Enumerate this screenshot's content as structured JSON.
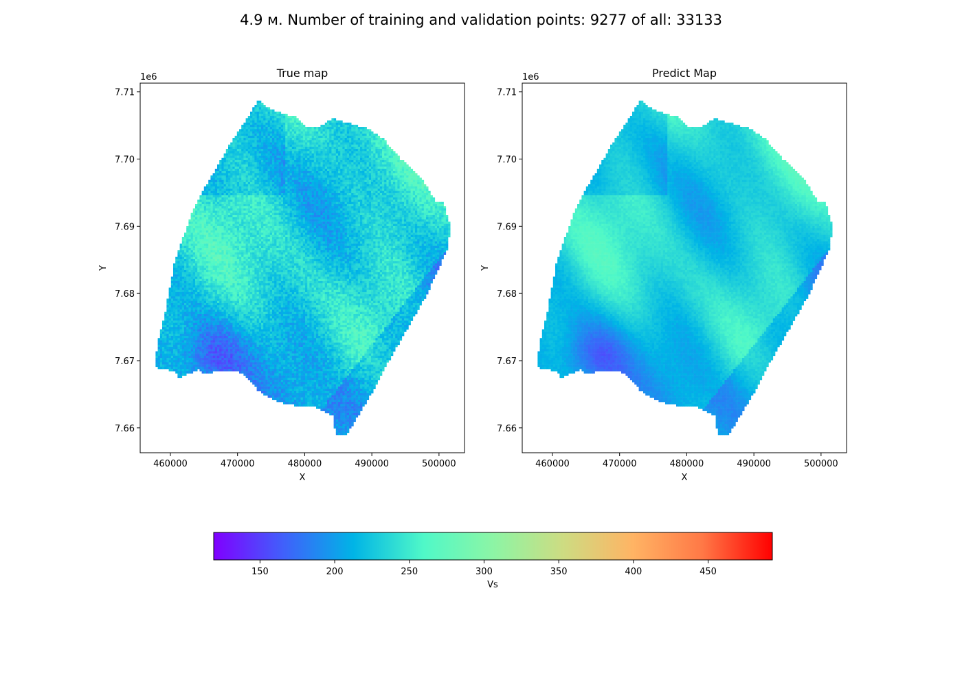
{
  "figure": {
    "suptitle": "4.9 м. Number of training and validation points: 9277 of all: 33133"
  },
  "chart_data": [
    {
      "type": "scatter",
      "title": "True map",
      "xlabel": "X",
      "ylabel": "Y",
      "y_offset_label": "1e6",
      "xlim": [
        455500,
        503800
      ],
      "ylim": [
        7656300,
        7711300
      ],
      "x_ticks": [
        460000,
        470000,
        480000,
        490000,
        500000
      ],
      "x_tick_labels": [
        "460000",
        "470000",
        "480000",
        "490000",
        "500000"
      ],
      "y_ticks": [
        7660000,
        7670000,
        7680000,
        7690000,
        7700000,
        7710000
      ],
      "y_tick_labels": [
        "7.66",
        "7.67",
        "7.68",
        "7.69",
        "7.70",
        "7.71"
      ],
      "footprint_polygon": [
        [
          457500,
          7669200
        ],
        [
          460500,
          7668600
        ],
        [
          461000,
          7667600
        ],
        [
          464000,
          7668800
        ],
        [
          465000,
          7668200
        ],
        [
          467000,
          7668600
        ],
        [
          470000,
          7668600
        ],
        [
          472000,
          7667000
        ],
        [
          473000,
          7665600
        ],
        [
          476000,
          7664000
        ],
        [
          478500,
          7663500
        ],
        [
          481000,
          7663500
        ],
        [
          484000,
          7662000
        ],
        [
          484500,
          7659000
        ],
        [
          486000,
          7659000
        ],
        [
          490000,
          7665600
        ],
        [
          492000,
          7669500
        ],
        [
          494000,
          7673000
        ],
        [
          496000,
          7676500
        ],
        [
          498000,
          7680000
        ],
        [
          500000,
          7684300
        ],
        [
          501300,
          7687300
        ],
        [
          501400,
          7690500
        ],
        [
          500500,
          7693900
        ],
        [
          499500,
          7693600
        ],
        [
          498500,
          7695200
        ],
        [
          497500,
          7697000
        ],
        [
          496000,
          7698500
        ],
        [
          494000,
          7700300
        ],
        [
          491500,
          7703200
        ],
        [
          489500,
          7704600
        ],
        [
          486000,
          7705600
        ],
        [
          484000,
          7706200
        ],
        [
          482000,
          7705000
        ],
        [
          480000,
          7705000
        ],
        [
          478500,
          7706400
        ],
        [
          477000,
          7706800
        ],
        [
          475000,
          7707500
        ],
        [
          474000,
          7708000
        ],
        [
          473000,
          7709000
        ],
        [
          470500,
          7705000
        ],
        [
          468500,
          7702000
        ],
        [
          466500,
          7698500
        ],
        [
          465000,
          7696000
        ],
        [
          463000,
          7692000
        ],
        [
          460500,
          7685000
        ],
        [
          459000,
          7677000
        ],
        [
          458000,
          7673000
        ]
      ],
      "point_count_shown": 33133,
      "value_range_observed": [
        150,
        320
      ],
      "colormap": "rainbow"
    },
    {
      "type": "scatter",
      "title": "Predict Map",
      "xlabel": "X",
      "ylabel": "Y",
      "y_offset_label": "1e6",
      "xlim": [
        455500,
        503800
      ],
      "ylim": [
        7656300,
        7711300
      ],
      "x_ticks": [
        460000,
        470000,
        480000,
        490000,
        500000
      ],
      "x_tick_labels": [
        "460000",
        "470000",
        "480000",
        "490000",
        "500000"
      ],
      "y_ticks": [
        7660000,
        7670000,
        7680000,
        7690000,
        7700000,
        7710000
      ],
      "y_tick_labels": [
        "7.66",
        "7.67",
        "7.68",
        "7.69",
        "7.70",
        "7.71"
      ],
      "footprint_polygon": [
        [
          457500,
          7669200
        ],
        [
          460500,
          7668600
        ],
        [
          461000,
          7667600
        ],
        [
          464000,
          7668800
        ],
        [
          465000,
          7668200
        ],
        [
          467000,
          7668600
        ],
        [
          470000,
          7668600
        ],
        [
          472000,
          7667000
        ],
        [
          473000,
          7665600
        ],
        [
          476000,
          7664000
        ],
        [
          478500,
          7663500
        ],
        [
          481000,
          7663500
        ],
        [
          484000,
          7662000
        ],
        [
          484500,
          7659000
        ],
        [
          486000,
          7659000
        ],
        [
          490000,
          7665600
        ],
        [
          492000,
          7669500
        ],
        [
          494000,
          7673000
        ],
        [
          496000,
          7676500
        ],
        [
          498000,
          7680000
        ],
        [
          500000,
          7684300
        ],
        [
          501300,
          7687300
        ],
        [
          501400,
          7690500
        ],
        [
          500500,
          7693900
        ],
        [
          499500,
          7693600
        ],
        [
          498500,
          7695200
        ],
        [
          497500,
          7697000
        ],
        [
          496000,
          7698500
        ],
        [
          494000,
          7700300
        ],
        [
          491500,
          7703200
        ],
        [
          489500,
          7704600
        ],
        [
          486000,
          7705600
        ],
        [
          484000,
          7706200
        ],
        [
          482000,
          7705000
        ],
        [
          480000,
          7705000
        ],
        [
          478500,
          7706400
        ],
        [
          477000,
          7706800
        ],
        [
          475000,
          7707500
        ],
        [
          474000,
          7708000
        ],
        [
          473000,
          7709000
        ],
        [
          470500,
          7705000
        ],
        [
          468500,
          7702000
        ],
        [
          466500,
          7698500
        ],
        [
          465000,
          7696000
        ],
        [
          463000,
          7692000
        ],
        [
          460500,
          7685000
        ],
        [
          459000,
          7677000
        ],
        [
          458000,
          7673000
        ]
      ],
      "point_count_shown": 33133,
      "value_range_observed": [
        160,
        300
      ],
      "colormap": "rainbow"
    }
  ],
  "colorbar": {
    "label": "Vs",
    "range": [
      119,
      493
    ],
    "ticks": [
      150,
      200,
      250,
      300,
      350,
      400,
      450
    ],
    "tick_labels": [
      "150",
      "200",
      "250",
      "300",
      "350",
      "400",
      "450"
    ],
    "colormap_stops": [
      "#8000ff",
      "#4060fb",
      "#00b4e6",
      "#4ff8c8",
      "#8cf5a5",
      "#cddc82",
      "#ffb464",
      "#ff7846",
      "#ff0000"
    ]
  }
}
